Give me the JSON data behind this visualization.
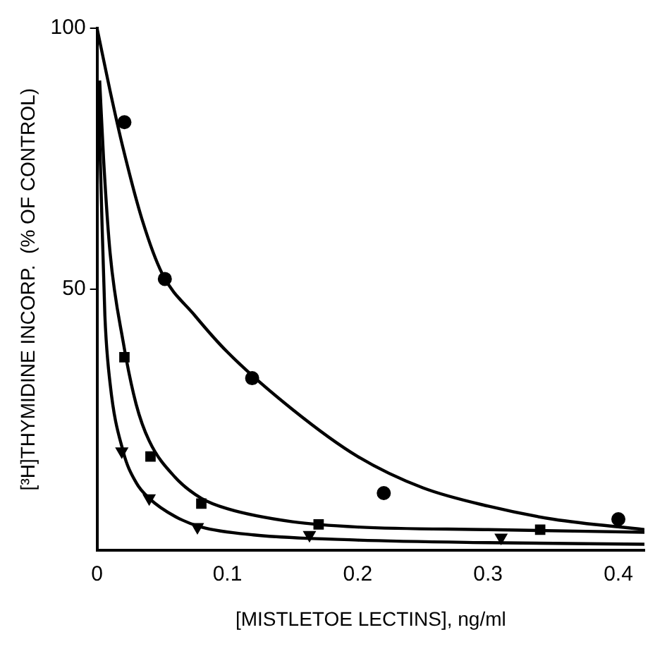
{
  "chart_data": {
    "type": "scatter",
    "xlabel": "[MISTLETOE LECTINS], ng/ml",
    "ylabel": "[³H]THYMIDINE INCORP.  (% OF CONTROL)",
    "xlim": [
      0,
      0.42
    ],
    "ylim": [
      0,
      100
    ],
    "xticks": [
      0,
      0.1,
      0.2,
      0.3,
      0.4
    ],
    "yticks": [
      50,
      100
    ],
    "grid": false,
    "legend": false,
    "series": [
      {
        "type": "scatter",
        "marker": "circle",
        "color": "#000000",
        "x": [
          0.021,
          0.052,
          0.119,
          0.22,
          0.4
        ],
        "values": [
          82,
          52,
          33,
          11,
          6
        ]
      },
      {
        "type": "scatter",
        "marker": "square",
        "color": "#000000",
        "x": [
          0.021,
          0.041,
          0.08,
          0.17,
          0.34
        ],
        "values": [
          37,
          18,
          9,
          5,
          4
        ]
      },
      {
        "type": "scatter",
        "marker": "triangle",
        "color": "#000000",
        "x": [
          0.019,
          0.04,
          0.077,
          0.163,
          0.31
        ],
        "values": [
          19,
          10,
          4.5,
          3,
          2.5
        ]
      },
      {
        "type": "line",
        "marker": "none",
        "color": "#000000",
        "x": [
          0,
          0.01,
          0.02,
          0.035,
          0.05,
          0.075,
          0.1,
          0.15,
          0.2,
          0.25,
          0.3,
          0.35,
          0.42
        ],
        "values": [
          100,
          88,
          77,
          63,
          53,
          45,
          38,
          27,
          18,
          12,
          8.5,
          6,
          4
        ]
      },
      {
        "type": "line",
        "marker": "none",
        "color": "#000000",
        "x": [
          0.002,
          0.005,
          0.01,
          0.02,
          0.03,
          0.04,
          0.06,
          0.08,
          0.1,
          0.15,
          0.2,
          0.3,
          0.42
        ],
        "values": [
          90,
          75,
          57,
          40,
          28,
          21,
          14,
          10,
          8,
          5.5,
          4.5,
          4,
          3.5
        ]
      },
      {
        "type": "line",
        "marker": "none",
        "color": "#000000",
        "x": [
          0.001,
          0.003,
          0.006,
          0.01,
          0.02,
          0.03,
          0.04,
          0.06,
          0.08,
          0.12,
          0.2,
          0.3,
          0.42
        ],
        "values": [
          88,
          70,
          45,
          32,
          19,
          13,
          10,
          6.5,
          4.5,
          3,
          2,
          1.5,
          1.2
        ]
      }
    ]
  }
}
